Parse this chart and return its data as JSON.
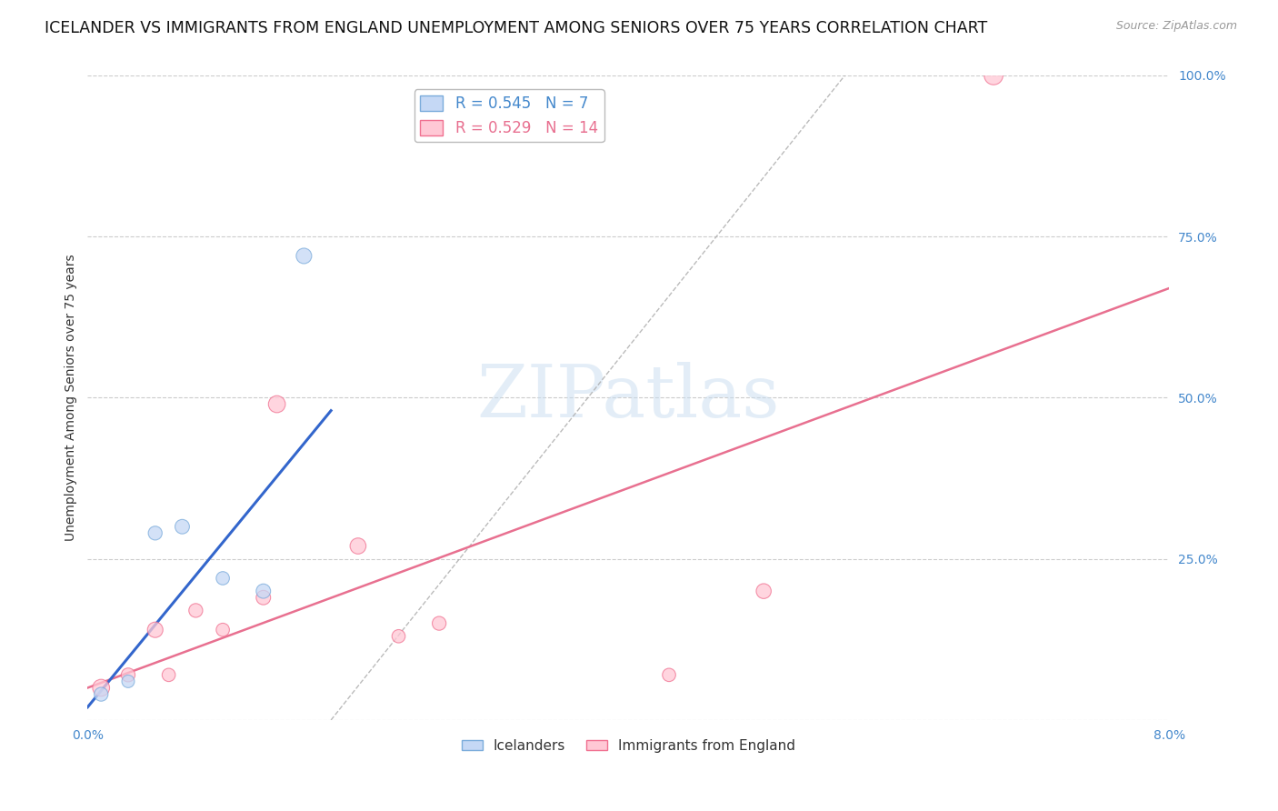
{
  "title": "ICELANDER VS IMMIGRANTS FROM ENGLAND UNEMPLOYMENT AMONG SENIORS OVER 75 YEARS CORRELATION CHART",
  "source": "Source: ZipAtlas.com",
  "ylabel": "Unemployment Among Seniors over 75 years",
  "xlim": [
    0.0,
    0.08
  ],
  "ylim": [
    0.0,
    1.0
  ],
  "xticks": [
    0.0,
    0.01,
    0.02,
    0.03,
    0.04,
    0.05,
    0.06,
    0.07,
    0.08
  ],
  "yticks_right": [
    0.0,
    0.25,
    0.5,
    0.75,
    1.0
  ],
  "ytick_labels_right": [
    "",
    "25.0%",
    "50.0%",
    "75.0%",
    "100.0%"
  ],
  "grid_color": "#cccccc",
  "background_color": "#ffffff",
  "watermark": "ZIPatlas",
  "icelanders_x": [
    0.001,
    0.003,
    0.005,
    0.007,
    0.01,
    0.013,
    0.016
  ],
  "icelanders_y": [
    0.04,
    0.06,
    0.29,
    0.3,
    0.22,
    0.2,
    0.72
  ],
  "icelanders_size": [
    120,
    100,
    120,
    130,
    110,
    130,
    150
  ],
  "icelanders_color": "#c5d8f5",
  "icelanders_edgecolor": "#7aabdb",
  "icelanders_alpha": 0.75,
  "icelanders_R": 0.545,
  "icelanders_N": 7,
  "england_x": [
    0.001,
    0.003,
    0.005,
    0.006,
    0.008,
    0.01,
    0.013,
    0.014,
    0.02,
    0.023,
    0.026,
    0.043,
    0.05,
    0.067
  ],
  "england_y": [
    0.05,
    0.07,
    0.14,
    0.07,
    0.17,
    0.14,
    0.19,
    0.49,
    0.27,
    0.13,
    0.15,
    0.07,
    0.2,
    1.0
  ],
  "england_size": [
    180,
    120,
    150,
    110,
    120,
    110,
    130,
    180,
    160,
    110,
    120,
    110,
    140,
    220
  ],
  "england_color": "#ffc8d5",
  "england_edgecolor": "#f07090",
  "england_alpha": 0.75,
  "england_R": 0.529,
  "england_N": 14,
  "icelanders_trend_x": [
    0.0,
    0.018
  ],
  "icelanders_trend_y": [
    0.02,
    0.48
  ],
  "england_trend_x": [
    0.0,
    0.08
  ],
  "england_trend_y": [
    0.05,
    0.67
  ],
  "ref_line_x": [
    0.018,
    0.056
  ],
  "ref_line_y": [
    0.0,
    1.0
  ],
  "legend_icelanders": "Icelanders",
  "legend_england": "Immigrants from England",
  "title_fontsize": 12.5,
  "axis_label_fontsize": 10,
  "tick_fontsize": 10
}
